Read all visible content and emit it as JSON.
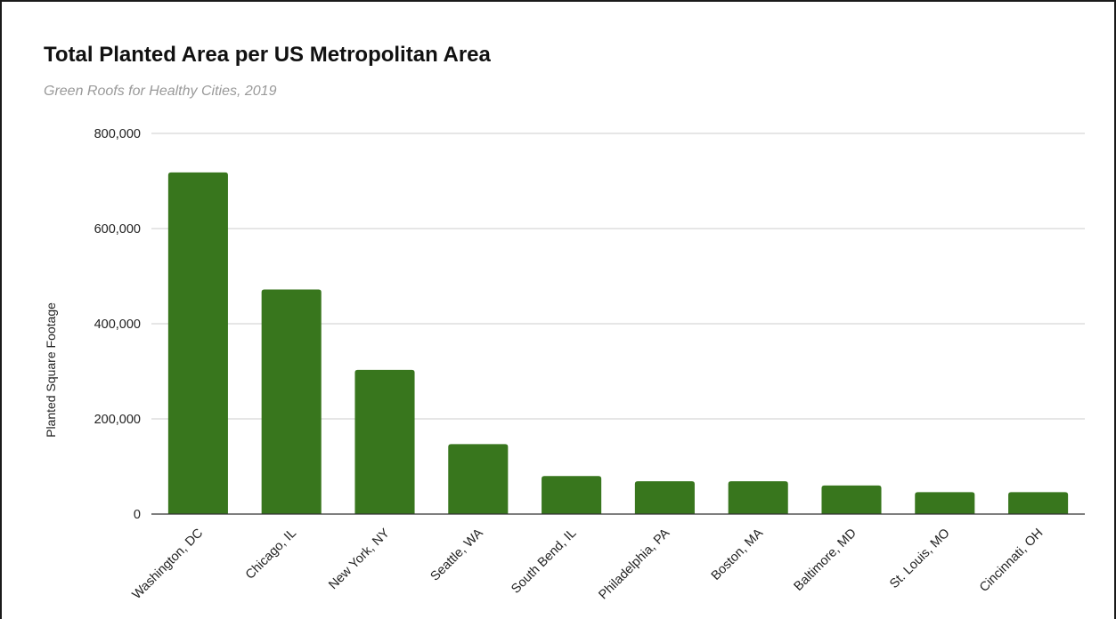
{
  "chart_data": {
    "type": "bar",
    "title": "Total Planted Area per US Metropolitan Area",
    "subtitle": "Green Roofs for Healthy Cities, 2019",
    "xlabel": "",
    "ylabel": "Planted Square Footage",
    "categories": [
      "Washington, DC",
      "Chicago, IL",
      "New York, NY",
      "Seattle, WA",
      "South Bend, IL",
      "Philadelphia, PA",
      "Boston, MA",
      "Baltimore, MD",
      "St. Louis, MO",
      "Cincinnati, OH"
    ],
    "values": [
      718000,
      472000,
      303000,
      147000,
      80000,
      69000,
      69000,
      60000,
      46000,
      46000
    ],
    "ylim": [
      0,
      800000
    ],
    "yticks": [
      0,
      200000,
      400000,
      600000,
      800000
    ],
    "ytick_labels": [
      "0",
      "200,000",
      "400,000",
      "600,000",
      "800,000"
    ],
    "grid": true,
    "legend": "none",
    "bar_color": "#38761d",
    "gridline_color": "#cccccc",
    "axis_line_color": "#333333"
  }
}
